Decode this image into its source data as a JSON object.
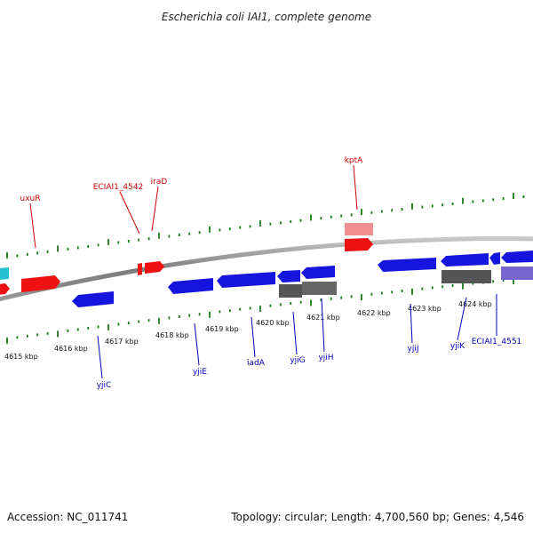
{
  "title": "Escherichia coli IAI1, complete genome",
  "footer": {
    "accession": "Accession: NC_011741",
    "summary": "Topology: circular; Length: 4,700,560 bp; Genes: 4,546"
  },
  "colors": {
    "backbone": "#8a8a8a",
    "tick": "#1a7a1a",
    "forward_gene": "#ee1111",
    "forward_pseudo": "#f09090",
    "reverse_gene": "#1515dd",
    "reverse_dark": "#555555",
    "cyan": "#20c0d0",
    "purple": "#7766cc",
    "label_forward": "#cc0000",
    "label_reverse": "#0000bb"
  },
  "ticks": [
    "4615 kbp",
    "4616 kbp",
    "4617 kbp",
    "4618 kbp",
    "4619 kbp",
    "4620 kbp",
    "4621 kbp",
    "4622 kbp",
    "4623 kbp",
    "4624 kbp"
  ],
  "forward_labels": [
    "uxuR",
    "ECIAI1_4542",
    "iraD",
    "kptA"
  ],
  "reverse_labels": [
    "yjiC",
    "yjiE",
    "iadA",
    "yjiG",
    "yjiH",
    "yjiJ",
    "yjiK",
    "ECIAI1_4551"
  ]
}
